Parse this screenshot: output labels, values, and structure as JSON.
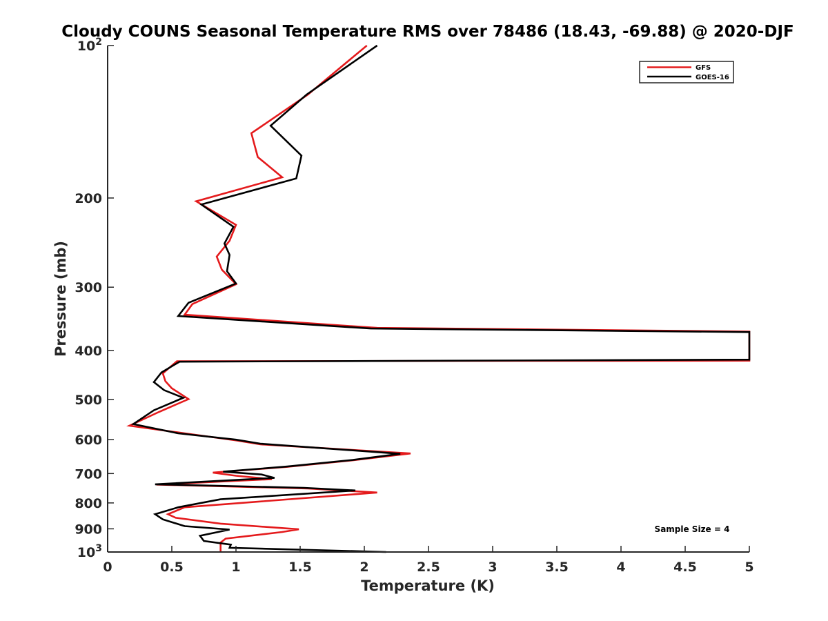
{
  "chart_data": {
    "type": "line",
    "title": "Cloudy COUNS Seasonal Temperature RMS over 78486 (18.43, -69.88) @ 2020-DJF",
    "xlabel": "Temperature (K)",
    "ylabel": "Pressure (mb)",
    "xlim": [
      0,
      5
    ],
    "ylim": [
      1000,
      100
    ],
    "yscale": "log",
    "x_ticks": [
      0,
      0.5,
      1,
      1.5,
      2,
      2.5,
      3,
      3.5,
      4,
      4.5,
      5
    ],
    "x_tick_labels": [
      "0",
      "0.5",
      "1",
      "1.5",
      "2",
      "2.5",
      "3",
      "3.5",
      "4",
      "4.5",
      "5"
    ],
    "y_ticks": [
      100,
      200,
      300,
      400,
      500,
      600,
      700,
      800,
      900,
      1000
    ],
    "y_tick_labels": [
      {
        "base": "10",
        "exp": "2"
      },
      {
        "base": "200",
        "exp": ""
      },
      {
        "base": "300",
        "exp": ""
      },
      {
        "base": "400",
        "exp": ""
      },
      {
        "base": "500",
        "exp": ""
      },
      {
        "base": "600",
        "exp": ""
      },
      {
        "base": "700",
        "exp": ""
      },
      {
        "base": "800",
        "exp": ""
      },
      {
        "base": "900",
        "exp": ""
      },
      {
        "base": "10",
        "exp": "3"
      }
    ],
    "legend_placement": "top-right",
    "series": [
      {
        "name": "GFS",
        "color": "#e41a1c",
        "points": [
          [
            2.02,
            100
          ],
          [
            1.56,
            125
          ],
          [
            1.12,
            149
          ],
          [
            1.17,
            166
          ],
          [
            1.36,
            182
          ],
          [
            0.69,
            203
          ],
          [
            1.0,
            226
          ],
          [
            0.95,
            243
          ],
          [
            0.85,
            261
          ],
          [
            0.89,
            277
          ],
          [
            1.0,
            296
          ],
          [
            0.66,
            324
          ],
          [
            0.6,
            340
          ],
          [
            2.1,
            361
          ],
          [
            5.0,
            367
          ],
          [
            5.0,
            419
          ],
          [
            0.54,
            420
          ],
          [
            0.43,
            444
          ],
          [
            0.45,
            460
          ],
          [
            0.5,
            475
          ],
          [
            0.63,
            499
          ],
          [
            0.4,
            529
          ],
          [
            0.17,
            563
          ],
          [
            0.6,
            583
          ],
          [
            1.0,
            602
          ],
          [
            1.19,
            613
          ],
          [
            2.36,
            639
          ],
          [
            1.91,
            659
          ],
          [
            1.4,
            679
          ],
          [
            0.82,
            697
          ],
          [
            1.0,
            707
          ],
          [
            1.28,
            718
          ],
          [
            0.38,
            736
          ],
          [
            1.56,
            749
          ],
          [
            2.1,
            763
          ],
          [
            0.6,
            816
          ],
          [
            0.47,
            842
          ],
          [
            0.53,
            856
          ],
          [
            0.88,
            879
          ],
          [
            1.49,
            902
          ],
          [
            1.36,
            913
          ],
          [
            0.92,
            941
          ],
          [
            0.88,
            958
          ],
          [
            0.88,
            1000
          ]
        ]
      },
      {
        "name": "GOES-16",
        "color": "#000000",
        "points": [
          [
            2.1,
            100
          ],
          [
            1.55,
            125
          ],
          [
            1.27,
            144
          ],
          [
            1.51,
            165
          ],
          [
            1.47,
            183
          ],
          [
            0.73,
            206
          ],
          [
            0.98,
            228
          ],
          [
            0.91,
            246
          ],
          [
            0.95,
            259
          ],
          [
            0.93,
            279
          ],
          [
            1.0,
            295
          ],
          [
            0.63,
            322
          ],
          [
            0.55,
            342
          ],
          [
            2.05,
            362
          ],
          [
            5.0,
            368
          ],
          [
            5.0,
            417
          ],
          [
            0.56,
            421
          ],
          [
            0.42,
            442
          ],
          [
            0.36,
            462
          ],
          [
            0.44,
            479
          ],
          [
            0.59,
            496
          ],
          [
            0.36,
            525
          ],
          [
            0.2,
            559
          ],
          [
            0.55,
            583
          ],
          [
            1.0,
            600
          ],
          [
            1.19,
            611
          ],
          [
            2.28,
            640
          ],
          [
            1.91,
            658
          ],
          [
            1.4,
            678
          ],
          [
            0.9,
            694
          ],
          [
            1.2,
            703
          ],
          [
            1.3,
            714
          ],
          [
            0.37,
            735
          ],
          [
            1.53,
            747
          ],
          [
            1.93,
            756
          ],
          [
            0.88,
            787
          ],
          [
            0.55,
            816
          ],
          [
            0.37,
            842
          ],
          [
            0.43,
            862
          ],
          [
            0.6,
            889
          ],
          [
            0.95,
            903
          ],
          [
            0.72,
            929
          ],
          [
            0.75,
            951
          ],
          [
            0.96,
            967
          ],
          [
            0.95,
            981
          ],
          [
            2.17,
            1000
          ]
        ]
      }
    ],
    "annotations": [
      "Sample Size = 4"
    ]
  }
}
